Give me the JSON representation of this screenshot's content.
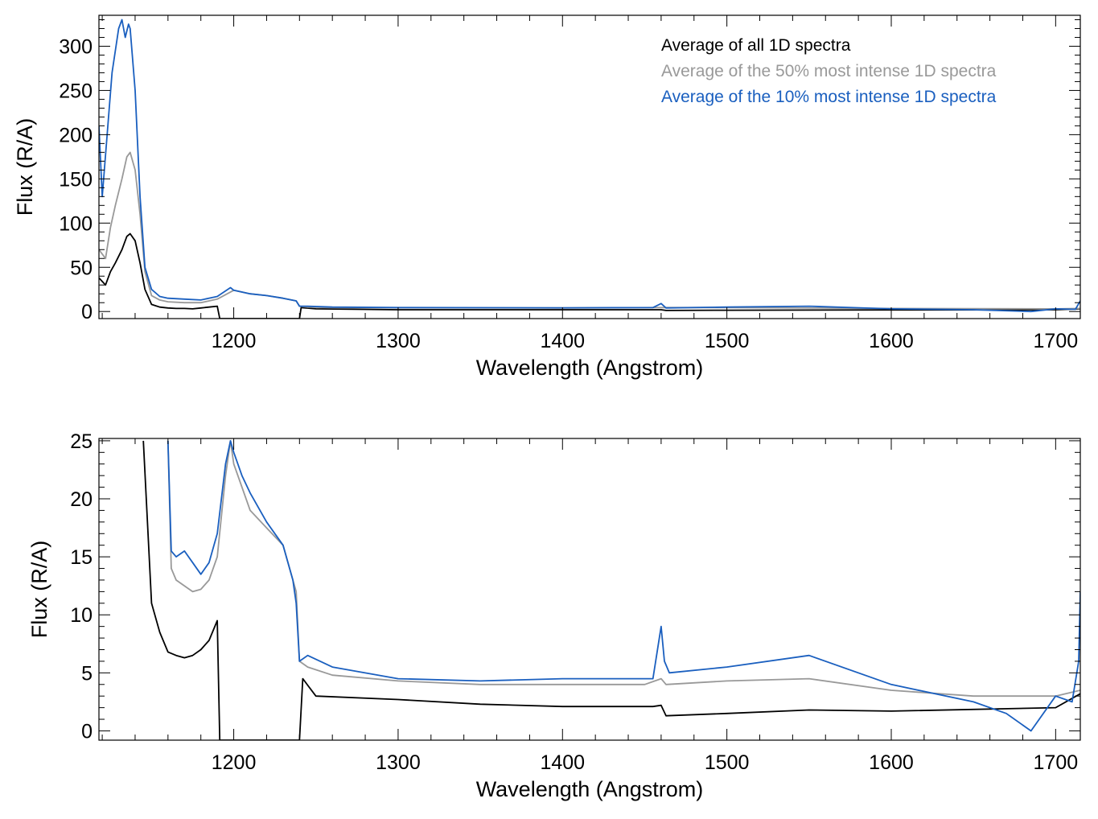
{
  "chart_data": [
    {
      "type": "line",
      "xlabel": "Wavelength (Angstrom)",
      "ylabel": "Flux (R/A)",
      "xlim": [
        1118,
        1715
      ],
      "ylim": [
        -8,
        335
      ],
      "xticks": [
        1200,
        1300,
        1400,
        1500,
        1600,
        1700
      ],
      "yticks": [
        0,
        50,
        100,
        150,
        200,
        250,
        300
      ],
      "legend": "top-right",
      "series": [
        {
          "name": "Average of all 1D spectra",
          "color": "#000000",
          "x": [
            1118,
            1122,
            1125,
            1128,
            1132,
            1135,
            1137,
            1140,
            1143,
            1146,
            1150,
            1155,
            1160,
            1165,
            1170,
            1175,
            1180,
            1185,
            1190,
            1191.5,
            1240,
            1241,
            1250,
            1300,
            1400,
            1460,
            1463,
            1500,
            1600,
            1700,
            1715
          ],
          "y": [
            38,
            30,
            45,
            55,
            70,
            85,
            88,
            80,
            55,
            25,
            8,
            5,
            4,
            3.5,
            3.5,
            3,
            4,
            5,
            6,
            -8,
            -8,
            4.5,
            3,
            2,
            2,
            2,
            1.2,
            1.5,
            1.8,
            2,
            3
          ]
        },
        {
          "name": "Average of the 50% most intense 1D spectra",
          "color": "#999999",
          "x": [
            1118,
            1122,
            1125,
            1128,
            1132,
            1135,
            1137,
            1140,
            1143,
            1146,
            1150,
            1155,
            1160,
            1170,
            1180,
            1190,
            1200,
            1210,
            1220,
            1230,
            1238,
            1240,
            1245,
            1260,
            1300,
            1400,
            1460,
            1500,
            1600,
            1700,
            1715
          ],
          "y": [
            70,
            60,
            95,
            120,
            150,
            175,
            180,
            160,
            110,
            45,
            18,
            13,
            11,
            10,
            10,
            14,
            24,
            20,
            18,
            15,
            12,
            6,
            5,
            4.5,
            4.2,
            4,
            4.5,
            4.5,
            3.5,
            3,
            3.5
          ]
        },
        {
          "name": "Average of the 10% most intense 1D spectra",
          "color": "#1a5fbf",
          "x": [
            1118,
            1120,
            1123,
            1126,
            1130,
            1132,
            1134,
            1136,
            1137,
            1140,
            1143,
            1146,
            1150,
            1155,
            1160,
            1170,
            1180,
            1190,
            1198,
            1200,
            1210,
            1220,
            1230,
            1238,
            1240,
            1245,
            1260,
            1300,
            1400,
            1455,
            1460,
            1463,
            1500,
            1550,
            1600,
            1650,
            1685,
            1700,
            1712,
            1715
          ],
          "y": [
            210,
            130,
            200,
            270,
            320,
            330,
            310,
            325,
            320,
            250,
            130,
            50,
            25,
            17,
            15,
            14,
            13,
            17,
            27,
            24,
            20,
            18,
            15,
            12,
            6,
            6,
            5,
            4.5,
            4.2,
            4.5,
            9,
            4,
            5,
            6,
            3,
            2,
            0,
            3,
            2.5,
            12
          ]
        }
      ]
    },
    {
      "type": "line",
      "xlabel": "Wavelength (Angstrom)",
      "ylabel": "Flux (R/A)",
      "xlim": [
        1118,
        1715
      ],
      "ylim": [
        -0.8,
        25.2
      ],
      "xticks": [
        1200,
        1300,
        1400,
        1500,
        1600,
        1700
      ],
      "yticks": [
        0,
        5,
        10,
        15,
        20,
        25
      ],
      "series": [
        {
          "color": "#000000",
          "x": [
            1145,
            1150,
            1155,
            1160,
            1165,
            1170,
            1175,
            1180,
            1185,
            1190,
            1191.5,
            1240,
            1242,
            1250,
            1300,
            1350,
            1400,
            1455,
            1460,
            1463,
            1500,
            1550,
            1600,
            1700,
            1715
          ],
          "y": [
            25,
            11,
            8.5,
            6.8,
            6.5,
            6.3,
            6.5,
            7,
            7.8,
            9.5,
            -0.8,
            -0.8,
            4.5,
            3,
            2.7,
            2.3,
            2.1,
            2.1,
            2.2,
            1.3,
            1.5,
            1.8,
            1.7,
            2,
            3.2
          ]
        },
        {
          "color": "#999999",
          "x": [
            1160,
            1162,
            1165,
            1170,
            1175,
            1180,
            1185,
            1190,
            1195,
            1198,
            1200,
            1205,
            1210,
            1220,
            1230,
            1236,
            1238,
            1240,
            1245,
            1260,
            1300,
            1350,
            1400,
            1450,
            1460,
            1463,
            1500,
            1550,
            1600,
            1650,
            1700,
            1715
          ],
          "y": [
            25,
            14,
            13,
            12.5,
            12,
            12.2,
            13,
            15,
            22,
            25,
            23,
            21,
            19,
            17.5,
            16,
            13,
            12,
            6,
            5.5,
            4.8,
            4.3,
            4,
            4,
            4,
            4.5,
            4,
            4.3,
            4.5,
            3.5,
            3,
            3,
            3.5
          ]
        },
        {
          "color": "#1a5fbf",
          "x": [
            1160,
            1162,
            1165,
            1170,
            1175,
            1180,
            1185,
            1190,
            1195,
            1198,
            1200,
            1205,
            1210,
            1220,
            1230,
            1236,
            1238,
            1240,
            1245,
            1260,
            1300,
            1350,
            1400,
            1455,
            1460,
            1462,
            1465,
            1500,
            1550,
            1600,
            1650,
            1670,
            1685,
            1700,
            1710,
            1714,
            1715
          ],
          "y": [
            25,
            15.5,
            15,
            15.5,
            14.5,
            13.5,
            14.5,
            17,
            23,
            25,
            24,
            22,
            20.5,
            18,
            16,
            13,
            11,
            6,
            6.5,
            5.5,
            4.5,
            4.3,
            4.5,
            4.5,
            9,
            6,
            5,
            5.5,
            6.5,
            4,
            2.5,
            1.5,
            0,
            3,
            2.5,
            6,
            12
          ]
        }
      ]
    }
  ]
}
